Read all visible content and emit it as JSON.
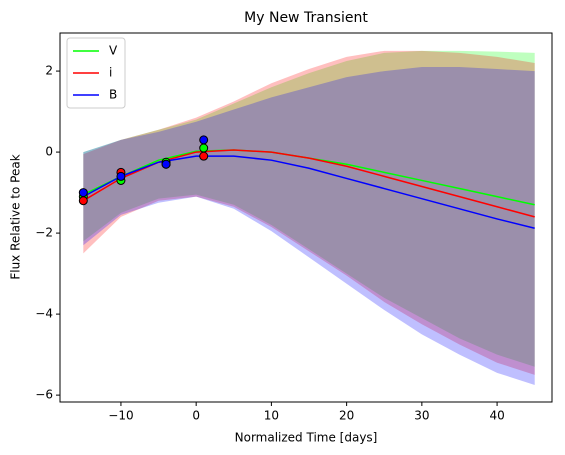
{
  "chart_data": {
    "type": "line",
    "title": "My New Transient",
    "xlabel": "Normalized Time [days]",
    "ylabel": "Flux Relative to Peak",
    "x": [
      -15,
      -10,
      -5,
      0,
      5,
      10,
      15,
      20,
      25,
      30,
      35,
      40,
      45
    ],
    "obs_x": [
      -15,
      -10,
      -4,
      1
    ],
    "series": [
      {
        "name": "V",
        "color": "#00ff00",
        "values": [
          -1.05,
          -0.6,
          -0.2,
          0.02,
          0.05,
          0.0,
          -0.15,
          -0.3,
          -0.5,
          -0.7,
          -0.9,
          -1.1,
          -1.3
        ],
        "upper": [
          0.0,
          0.3,
          0.55,
          0.8,
          1.2,
          1.6,
          1.95,
          2.25,
          2.45,
          2.5,
          2.5,
          2.48,
          2.45
        ],
        "lower": [
          -2.2,
          -1.5,
          -1.15,
          -1.05,
          -1.3,
          -1.8,
          -2.4,
          -3.0,
          -3.6,
          -4.1,
          -4.6,
          -5.0,
          -5.3
        ],
        "obs_values": [
          -1.1,
          -0.7,
          -0.25,
          0.1
        ]
      },
      {
        "name": "i",
        "color": "#ff0000",
        "values": [
          -1.2,
          -0.65,
          -0.25,
          0.0,
          0.05,
          0.0,
          -0.15,
          -0.35,
          -0.6,
          -0.85,
          -1.1,
          -1.35,
          -1.6
        ],
        "upper": [
          -0.05,
          0.3,
          0.55,
          0.85,
          1.25,
          1.7,
          2.05,
          2.35,
          2.5,
          2.5,
          2.45,
          2.35,
          2.2
        ],
        "lower": [
          -2.5,
          -1.6,
          -1.2,
          -1.1,
          -1.35,
          -1.85,
          -2.45,
          -3.05,
          -3.7,
          -4.25,
          -4.75,
          -5.2,
          -5.5
        ],
        "obs_values": [
          -1.2,
          -0.5,
          -0.3,
          -0.1
        ]
      },
      {
        "name": "B",
        "color": "#0000ff",
        "values": [
          -1.1,
          -0.6,
          -0.25,
          -0.1,
          -0.1,
          -0.2,
          -0.4,
          -0.65,
          -0.9,
          -1.15,
          -1.4,
          -1.65,
          -1.88
        ],
        "upper": [
          0.0,
          0.3,
          0.5,
          0.75,
          1.05,
          1.35,
          1.6,
          1.85,
          2.0,
          2.1,
          2.1,
          2.05,
          2.0
        ],
        "lower": [
          -2.3,
          -1.55,
          -1.25,
          -1.1,
          -1.4,
          -1.95,
          -2.6,
          -3.25,
          -3.9,
          -4.5,
          -5.0,
          -5.45,
          -5.75
        ],
        "obs_values": [
          -1.0,
          -0.6,
          -0.3,
          0.3
        ]
      }
    ],
    "xlim": [
      -18.1,
      47.3
    ],
    "ylim": [
      -6.17,
      2.94
    ],
    "xticks": [
      {
        "value": -10,
        "label": "−10"
      },
      0,
      10,
      20,
      30,
      40
    ],
    "yticks": [
      {
        "value": -6,
        "label": "−6"
      },
      {
        "value": -4,
        "label": "−4"
      },
      {
        "value": -2,
        "label": "−2"
      },
      0,
      2
    ],
    "band_opacity": 0.25,
    "legend": "upper left"
  }
}
